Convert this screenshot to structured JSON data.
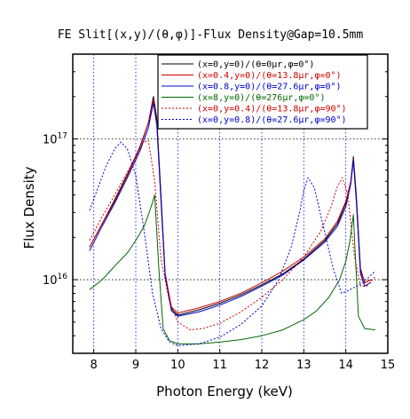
{
  "chart_data": {
    "type": "line",
    "title": "FE Slit[(x,y)/(θ,φ)]-Flux Density@Gap=10.5mm",
    "xlabel": "Photon Energy (keV)",
    "ylabel": "Flux Density",
    "xlim": [
      7.5,
      15
    ],
    "ylim": [
      3000000000000000.0,
      4e+17
    ],
    "yscale": "log",
    "grid": true,
    "legend_position": "top-right",
    "x_ticks": [
      8,
      9,
      10,
      11,
      12,
      13,
      14,
      15
    ],
    "y_ticks": [
      {
        "value": 1e+16,
        "label_base": "10",
        "label_exp": "16"
      },
      {
        "value": 1e+17,
        "label_base": "10",
        "label_exp": "17"
      }
    ],
    "series": [
      {
        "name": "(x=0,y=0)/(θ=0μr,φ=0°)",
        "color": "#000000",
        "dash": "solid",
        "points": [
          [
            7.9,
            1.7e+16
          ],
          [
            8.2,
            2.5e+16
          ],
          [
            8.5,
            3.7e+16
          ],
          [
            8.8,
            5.6e+16
          ],
          [
            9.1,
            8.8e+16
          ],
          [
            9.3,
            1.3e+17
          ],
          [
            9.42,
            2e+17
          ],
          [
            9.5,
            1.4e+17
          ],
          [
            9.6,
            4e+16
          ],
          [
            9.7,
            1.1e+16
          ],
          [
            9.85,
            6200000000000000.0
          ],
          [
            10.0,
            5600000000000000.0
          ],
          [
            10.5,
            6100000000000000.0
          ],
          [
            11.0,
            6800000000000000.0
          ],
          [
            11.5,
            7800000000000000.0
          ],
          [
            12.0,
            9200000000000000.0
          ],
          [
            12.5,
            1.1e+16
          ],
          [
            13.0,
            1.4e+16
          ],
          [
            13.5,
            1.9e+16
          ],
          [
            13.8,
            2.5e+16
          ],
          [
            14.0,
            3.5e+16
          ],
          [
            14.12,
            5e+16
          ],
          [
            14.18,
            7.5e+16
          ],
          [
            14.25,
            4e+16
          ],
          [
            14.35,
            1.2e+16
          ],
          [
            14.45,
            9500000000000000.0
          ],
          [
            14.6,
            1e+16
          ]
        ]
      },
      {
        "name": "(x=0.4,y=0)/(θ=13.8μr,φ=0°)",
        "color": "#cc0000",
        "dash": "solid",
        "points": [
          [
            7.9,
            1.7e+16
          ],
          [
            8.2,
            2.5e+16
          ],
          [
            8.5,
            3.6e+16
          ],
          [
            8.8,
            5.5e+16
          ],
          [
            9.1,
            8.6e+16
          ],
          [
            9.3,
            1.3e+17
          ],
          [
            9.42,
            1.9e+17
          ],
          [
            9.5,
            1.3e+17
          ],
          [
            9.6,
            3.8e+16
          ],
          [
            9.7,
            1.1e+16
          ],
          [
            9.85,
            6400000000000000.0
          ],
          [
            10.0,
            5800000000000000.0
          ],
          [
            10.5,
            6300000000000000.0
          ],
          [
            11.0,
            7000000000000000.0
          ],
          [
            11.5,
            8000000000000000.0
          ],
          [
            12.0,
            9500000000000000.0
          ],
          [
            12.5,
            1.15e+16
          ],
          [
            13.0,
            1.45e+16
          ],
          [
            13.5,
            1.95e+16
          ],
          [
            13.8,
            2.6e+16
          ],
          [
            14.0,
            3.6e+16
          ],
          [
            14.12,
            5e+16
          ],
          [
            14.18,
            7.2e+16
          ],
          [
            14.25,
            3.8e+16
          ],
          [
            14.35,
            1.15e+16
          ],
          [
            14.45,
            9500000000000000.0
          ],
          [
            14.6,
            1e+16
          ]
        ]
      },
      {
        "name": "(x=0.8,y=0)/(θ=27.6μr,φ=0°)",
        "color": "#0000cc",
        "dash": "solid",
        "points": [
          [
            7.9,
            1.6e+16
          ],
          [
            8.2,
            2.4e+16
          ],
          [
            8.5,
            3.5e+16
          ],
          [
            8.8,
            5.3e+16
          ],
          [
            9.1,
            8.2e+16
          ],
          [
            9.3,
            1.2e+17
          ],
          [
            9.42,
            1.8e+17
          ],
          [
            9.5,
            1.25e+17
          ],
          [
            9.6,
            3.6e+16
          ],
          [
            9.7,
            1.05e+16
          ],
          [
            9.85,
            6000000000000000.0
          ],
          [
            10.0,
            5500000000000000.0
          ],
          [
            10.5,
            5900000000000000.0
          ],
          [
            11.0,
            6600000000000000.0
          ],
          [
            11.5,
            7600000000000000.0
          ],
          [
            12.0,
            9000000000000000.0
          ],
          [
            12.5,
            1.08e+16
          ],
          [
            13.0,
            1.38e+16
          ],
          [
            13.5,
            1.85e+16
          ],
          [
            13.8,
            2.4e+16
          ],
          [
            14.0,
            3.3e+16
          ],
          [
            14.12,
            4.8e+16
          ],
          [
            14.18,
            7e+16
          ],
          [
            14.25,
            3.6e+16
          ],
          [
            14.35,
            1.1e+16
          ],
          [
            14.45,
            9000000000000000.0
          ],
          [
            14.6,
            9600000000000000.0
          ]
        ]
      },
      {
        "name": "(x=8,y=0)/(θ=276μr,φ=0°)",
        "color": "#006600",
        "dash": "solid",
        "points": [
          [
            7.9,
            8500000000000000.0
          ],
          [
            8.2,
            1e+16
          ],
          [
            8.5,
            1.25e+16
          ],
          [
            8.8,
            1.55e+16
          ],
          [
            9.0,
            1.9e+16
          ],
          [
            9.2,
            2.4e+16
          ],
          [
            9.35,
            3.2e+16
          ],
          [
            9.45,
            4e+16
          ],
          [
            9.55,
            1.2e+16
          ],
          [
            9.65,
            4500000000000000.0
          ],
          [
            9.8,
            3700000000000000.0
          ],
          [
            10.0,
            3500000000000000.0
          ],
          [
            10.5,
            3500000000000000.0
          ],
          [
            11.0,
            3600000000000000.0
          ],
          [
            11.5,
            3750000000000000.0
          ],
          [
            12.0,
            4000000000000000.0
          ],
          [
            12.5,
            4400000000000000.0
          ],
          [
            13.0,
            5200000000000000.0
          ],
          [
            13.3,
            6000000000000000.0
          ],
          [
            13.6,
            7500000000000000.0
          ],
          [
            13.85,
            1e+16
          ],
          [
            14.0,
            1.35e+16
          ],
          [
            14.1,
            1.9e+16
          ],
          [
            14.18,
            2.9e+16
          ],
          [
            14.22,
            1.6e+16
          ],
          [
            14.3,
            5500000000000000.0
          ],
          [
            14.45,
            4500000000000000.0
          ],
          [
            14.7,
            4400000000000000.0
          ]
        ]
      },
      {
        "name": "(x=0,y=0.4)/(θ=13.8μr,φ=90°)",
        "color": "#cc0000",
        "dash": "dotted",
        "points": [
          [
            7.9,
            1.9e+16
          ],
          [
            8.2,
            2.8e+16
          ],
          [
            8.5,
            4e+16
          ],
          [
            8.8,
            5.8e+16
          ],
          [
            9.0,
            7.5e+16
          ],
          [
            9.15,
            9.3e+16
          ],
          [
            9.3,
            9.8e+16
          ],
          [
            9.45,
            5e+16
          ],
          [
            9.6,
            1.4e+16
          ],
          [
            9.8,
            7000000000000000.0
          ],
          [
            10.0,
            5000000000000000.0
          ],
          [
            10.3,
            4400000000000000.0
          ],
          [
            10.6,
            4500000000000000.0
          ],
          [
            11.0,
            4900000000000000.0
          ],
          [
            11.5,
            5900000000000000.0
          ],
          [
            12.0,
            7500000000000000.0
          ],
          [
            12.5,
            1e+16
          ],
          [
            13.0,
            1.45e+16
          ],
          [
            13.4,
            2.2e+16
          ],
          [
            13.65,
            3.3e+16
          ],
          [
            13.8,
            4.6e+16
          ],
          [
            13.92,
            5.3e+16
          ],
          [
            14.05,
            4e+16
          ],
          [
            14.2,
            1.5e+16
          ],
          [
            14.35,
            9000000000000000.0
          ],
          [
            14.5,
            9000000000000000.0
          ],
          [
            14.7,
            1.05e+16
          ]
        ]
      },
      {
        "name": "(x=0,y=0.8)/(θ=27.6μr,φ=90°)",
        "color": "#0000cc",
        "dash": "dotted",
        "points": [
          [
            7.9,
            3.1e+16
          ],
          [
            8.1,
            4.5e+16
          ],
          [
            8.3,
            6.5e+16
          ],
          [
            8.5,
            8.5e+16
          ],
          [
            8.65,
            9.5e+16
          ],
          [
            8.8,
            8.5e+16
          ],
          [
            9.0,
            5.5e+16
          ],
          [
            9.2,
            2.2e+16
          ],
          [
            9.4,
            8000000000000000.0
          ],
          [
            9.6,
            4500000000000000.0
          ],
          [
            9.8,
            3600000000000000.0
          ],
          [
            10.0,
            3400000000000000.0
          ],
          [
            10.5,
            3500000000000000.0
          ],
          [
            11.0,
            3900000000000000.0
          ],
          [
            11.5,
            4800000000000000.0
          ],
          [
            12.0,
            6500000000000000.0
          ],
          [
            12.4,
            1e+16
          ],
          [
            12.7,
            1.7e+16
          ],
          [
            12.9,
            3e+16
          ],
          [
            13.0,
            4.3e+16
          ],
          [
            13.1,
            5.3e+16
          ],
          [
            13.25,
            4.5e+16
          ],
          [
            13.45,
            2.5e+16
          ],
          [
            13.7,
            1.2e+16
          ],
          [
            13.9,
            8000000000000000.0
          ],
          [
            14.1,
            8500000000000000.0
          ],
          [
            14.4,
            9500000000000000.0
          ],
          [
            14.7,
            1.15e+16
          ]
        ]
      }
    ]
  }
}
